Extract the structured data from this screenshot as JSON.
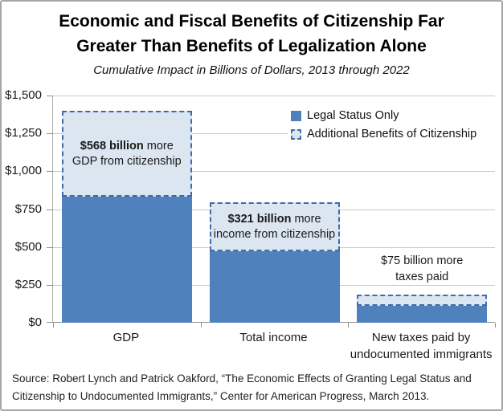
{
  "chart_data": {
    "type": "bar",
    "stacked": true,
    "title_lines": [
      "Economic and Fiscal Benefits of Citizenship Far",
      "Greater Than Benefits of Legalization Alone"
    ],
    "subtitle": "Cumulative Impact in Billions of Dollars, 2013 through 2022",
    "categories": [
      "GDP",
      "Total income",
      "New taxes paid by\nundocumented immigrants"
    ],
    "series": [
      {
        "name": "Legal Status Only",
        "values": [
          832,
          470,
          109
        ],
        "color": "#4F81BD"
      },
      {
        "name": "Additional Benefits of Citizenship",
        "values": [
          568,
          321,
          75
        ],
        "color": "#DCE6F1",
        "border_color": "#3F6BAB",
        "border_style": "dashed"
      }
    ],
    "yticks": [
      "$1,500",
      "$1,250",
      "$1,000",
      "$750",
      "$500",
      "$250",
      "$0"
    ],
    "ylim": [
      0,
      1500
    ],
    "grid": true,
    "legend_position": "top-right",
    "bar_annotations": [
      {
        "bold": "$568 billion",
        "rest": " more",
        "line2": "GDP from citizenship"
      },
      {
        "bold": "$321 billion",
        "rest": " more",
        "line2": "income from citizenship"
      },
      {
        "bold": "$75 billion",
        "rest": " more",
        "line2": "taxes paid"
      }
    ]
  },
  "source": {
    "lines": [
      "Source: Robert Lynch and Patrick Oakford, “The Economic Effects of Granting Legal Status and",
      "Citizenship to Undocumented Immigrants,” Center for American Progress, March 2013."
    ]
  }
}
